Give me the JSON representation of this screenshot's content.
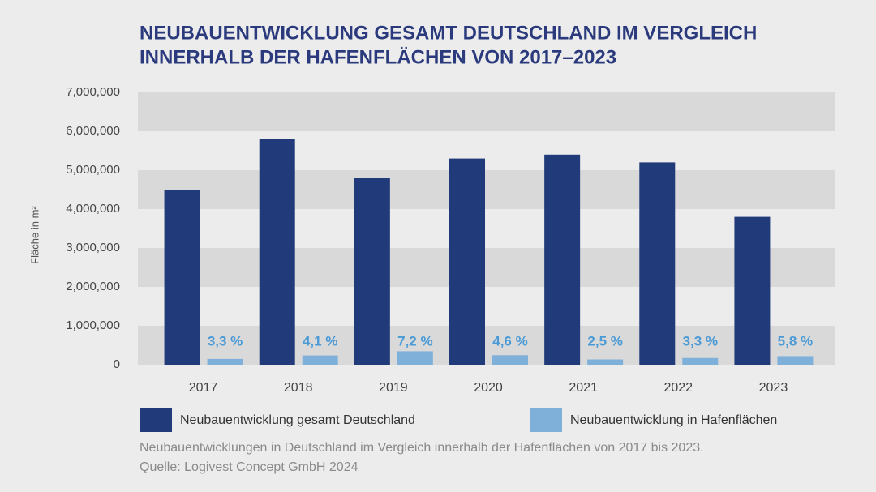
{
  "chart_data": {
    "type": "bar",
    "title": [
      "NEUBAUENTWICKLUNG GESAMT DEUTSCHLAND IM VERGLEICH",
      "INNERHALB DER HAFENFLÄCHEN VON 2017–2023"
    ],
    "y_label": "Fläche in m²",
    "categories": [
      "2017",
      "2018",
      "2019",
      "2020",
      "2021",
      "2022",
      "2023"
    ],
    "series": [
      {
        "name": "Neubauentwicklung gesamt Deutschland",
        "color": "#213a7a",
        "values": [
          4500000,
          5800000,
          4800000,
          5300000,
          5400000,
          5200000,
          3800000
        ]
      },
      {
        "name": "Neubauentwicklung in Hafenflächen",
        "color": "#7fb0da",
        "values": [
          148500,
          237800,
          345600,
          243800,
          135000,
          171600,
          220400
        ],
        "annotations": [
          "3,3 %",
          "4,1 %",
          "7,2 %",
          "4,6 %",
          "2,5 %",
          "3,3 %",
          "5,8 %"
        ]
      }
    ],
    "ylim": [
      0,
      7000000
    ],
    "yticks": [
      0,
      {
        "value": 1000000,
        "label": "1,000,000"
      },
      {
        "value": 2000000,
        "label": "2,000,000"
      },
      {
        "value": 3000000,
        "label": "3,000,000"
      },
      {
        "value": 4000000,
        "label": "4,000,000"
      },
      {
        "value": 5000000,
        "label": "5,000,000"
      },
      {
        "value": 6000000,
        "label": "6,000,000"
      },
      {
        "value": 7000000,
        "label": "7,000,000"
      }
    ],
    "grid": "bands",
    "caption": [
      "Neubauentwicklungen in Deutschland im Vergleich innerhalb der Hafenflächen von 2017 bis 2023.",
      "Quelle: Logivest Concept GmbH 2024"
    ]
  }
}
